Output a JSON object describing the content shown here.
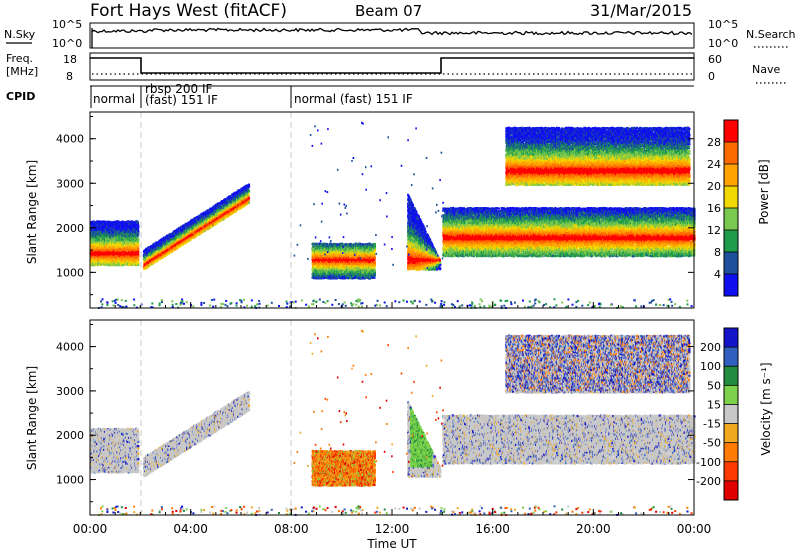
{
  "header": {
    "station": "Fort Hays West (fitACF)",
    "beam": "Beam 07",
    "date": "31/Mar/2015"
  },
  "noise_panel": {
    "left_label": "N.Sky",
    "left_ticks": [
      "10^5",
      "10^0"
    ],
    "right_label": "N.Search",
    "right_ticks": [
      "10^5",
      "10^0"
    ]
  },
  "freq_panel": {
    "left_label_1": "Freq.",
    "left_label_2": "[MHz]",
    "left_ticks": [
      "18",
      "8"
    ],
    "right_label": "Nave",
    "right_ticks": [
      "60",
      "0"
    ]
  },
  "cpid_panel": {
    "label": "CPID",
    "segments": [
      {
        "t_start": 0,
        "t_end": 2,
        "text_1": "normal",
        "text_2": ""
      },
      {
        "t_start": 2,
        "t_end": 8,
        "text_1": "rbsp 200 IF",
        "text_2": "(fast) 151 IF"
      },
      {
        "t_start": 8,
        "t_end": 24,
        "text_1": "normal (fast) 151 IF",
        "text_2": ""
      }
    ]
  },
  "chart_data": [
    {
      "type": "heatmap",
      "panel": "power",
      "ylabel": "Slant Range [km]",
      "y_ticks": [
        "1000",
        "2000",
        "3000",
        "4000"
      ],
      "ylim": [
        200,
        4600
      ],
      "xlim": [
        0,
        24
      ],
      "colorbar": {
        "label": "Power [dB]",
        "ticks": [
          "28",
          "24",
          "20",
          "16",
          "12",
          "8",
          "4"
        ],
        "colors": [
          "#ff0000",
          "#ff6a00",
          "#ffa300",
          "#f0d800",
          "#79c850",
          "#1e9b4b",
          "#1c4f9c",
          "#1010ee"
        ]
      },
      "regions": [
        {
          "t0": 0.0,
          "t1": 1.9,
          "r0": 1200,
          "r1": 2200,
          "peak": 1450
        },
        {
          "t0": 2.1,
          "t1": 6.3,
          "r0": 1100,
          "r1": 2900,
          "peak": 1300
        },
        {
          "t0": 8.8,
          "t1": 11.3,
          "r0": 900,
          "r1": 1700,
          "peak": 1300
        },
        {
          "t0": 12.6,
          "t1": 13.9,
          "r0": 1000,
          "r1": 2800,
          "peak": 1300
        },
        {
          "t0": 14.0,
          "t1": 24.0,
          "r0": 1400,
          "r1": 2500,
          "peak": 1800
        },
        {
          "t0": 16.5,
          "t1": 23.8,
          "r0": 3000,
          "r1": 4300,
          "peak": 3300
        }
      ]
    },
    {
      "type": "heatmap",
      "panel": "velocity",
      "ylabel": "Slant Range [km]",
      "y_ticks": [
        "1000",
        "2000",
        "3000",
        "4000"
      ],
      "ylim": [
        200,
        4600
      ],
      "xlim": [
        0,
        24
      ],
      "xlabel": "Time UT",
      "x_ticks": [
        "00:00",
        "04:00",
        "08:00",
        "12:00",
        "16:00",
        "20:00",
        "00:00"
      ],
      "colorbar": {
        "label": "Velocity [m s⁻¹]",
        "ticks": [
          "200",
          "100",
          "50",
          "15",
          "-15",
          "-50",
          "-100",
          "-200"
        ],
        "colors": [
          "#1414c8",
          "#2f5fbf",
          "#1f8c3f",
          "#7cd24a",
          "#c8c8c8",
          "#f0a820",
          "#ff7a00",
          "#ff3a00",
          "#e00000"
        ]
      }
    }
  ]
}
